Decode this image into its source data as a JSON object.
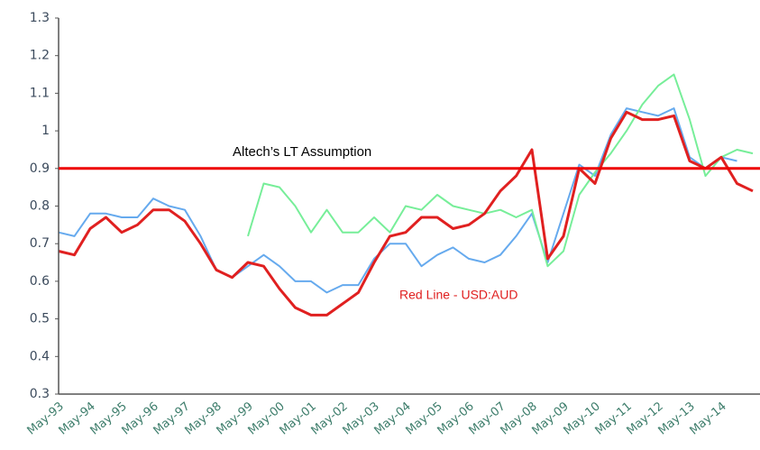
{
  "chart_data": {
    "type": "line",
    "categories": [
      "May-93",
      null,
      "May-94",
      null,
      "May-95",
      null,
      "May-96",
      null,
      "May-97",
      null,
      "May-98",
      null,
      "May-99",
      null,
      "May-00",
      null,
      "May-01",
      null,
      "May-02",
      null,
      "May-03",
      null,
      "May-04",
      null,
      "May-05",
      null,
      "May-06",
      null,
      "May-07",
      null,
      "May-08",
      null,
      "May-09",
      null,
      "May-10",
      null,
      "May-11",
      null,
      "May-12",
      null,
      "May-13",
      null,
      "May-14",
      null,
      null
    ],
    "series": [
      {
        "color": "#66aaee",
        "values": [
          0.73,
          0.72,
          0.78,
          0.78,
          0.77,
          0.77,
          0.82,
          0.8,
          0.79,
          0.72,
          0.63,
          0.61,
          0.64,
          0.67,
          0.64,
          0.6,
          0.6,
          0.57,
          0.59,
          0.59,
          0.66,
          0.7,
          0.7,
          0.64,
          0.67,
          0.69,
          0.66,
          0.65,
          0.67,
          0.72,
          0.78,
          0.65,
          0.78,
          0.91,
          0.88,
          0.99,
          1.06,
          1.05,
          1.04,
          1.06,
          0.93,
          0.9,
          0.93,
          0.92,
          null
        ]
      },
      {
        "color": "#77ee99",
        "values": [
          null,
          null,
          null,
          null,
          null,
          null,
          null,
          null,
          null,
          null,
          null,
          null,
          0.72,
          0.86,
          0.85,
          0.8,
          0.73,
          0.79,
          0.73,
          0.73,
          0.77,
          0.73,
          0.8,
          0.79,
          0.83,
          0.8,
          0.79,
          0.78,
          0.79,
          0.77,
          0.79,
          0.64,
          0.68,
          0.83,
          0.89,
          0.94,
          1.0,
          1.07,
          1.12,
          1.15,
          1.03,
          0.88,
          0.93,
          0.95,
          0.94
        ]
      },
      {
        "color": "#e02020",
        "values": [
          0.68,
          0.67,
          0.74,
          0.77,
          0.73,
          0.75,
          0.79,
          0.79,
          0.76,
          0.7,
          0.63,
          0.61,
          0.65,
          0.64,
          0.58,
          0.53,
          0.51,
          0.51,
          0.54,
          0.57,
          0.65,
          0.72,
          0.73,
          0.77,
          0.77,
          0.74,
          0.75,
          0.78,
          0.84,
          0.88,
          0.95,
          0.66,
          0.72,
          0.9,
          0.86,
          0.98,
          1.05,
          1.03,
          1.03,
          1.04,
          0.92,
          0.9,
          0.93,
          0.86,
          0.84
        ]
      }
    ],
    "ylim": [
      0.3,
      1.3
    ],
    "yticks": [
      0.3,
      0.4,
      0.5,
      0.6,
      0.7,
      0.8,
      0.9,
      1,
      1.1,
      1.2,
      1.3
    ],
    "reference_line": {
      "value": 0.9,
      "label": "Altech’s LT Assumption",
      "color": "#ee0000"
    },
    "annotation": {
      "text": "Red Line -  USD:AUD",
      "color": "#e02020"
    }
  }
}
